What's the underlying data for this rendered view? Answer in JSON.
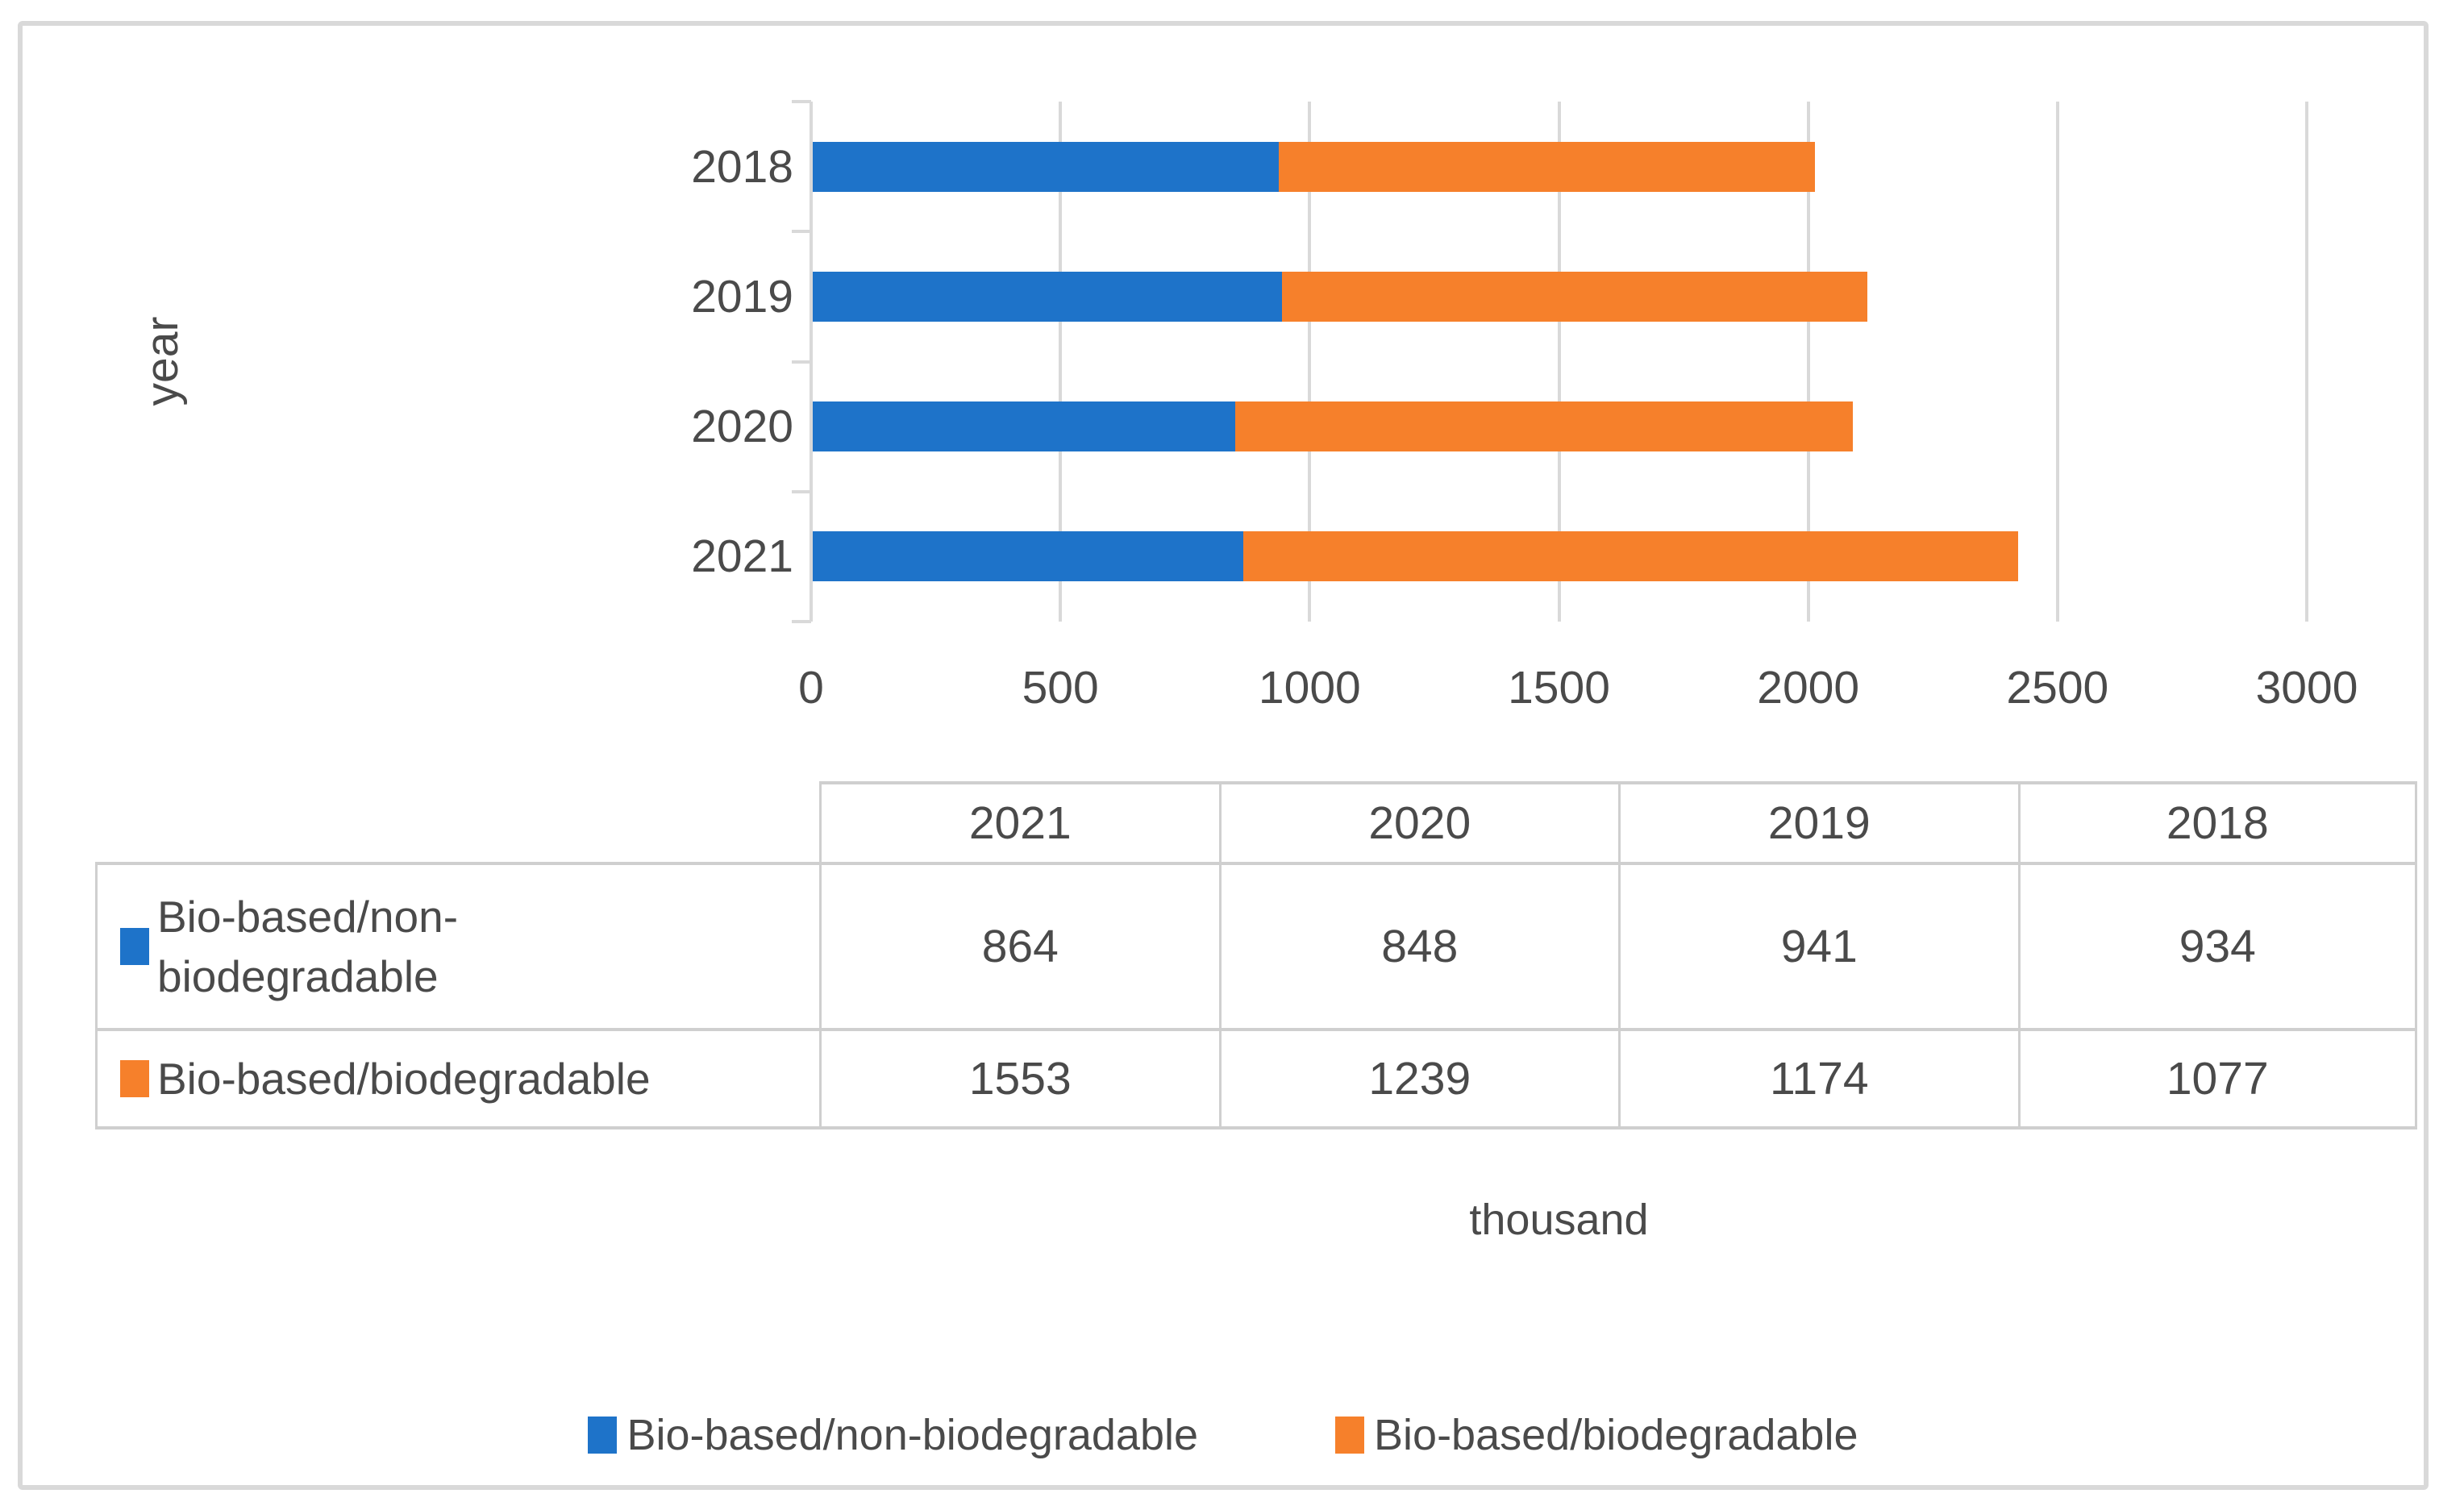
{
  "figure": {
    "background": "#ffffff",
    "border_color": "#d9d9d9",
    "grid_color": "#d9d9d9",
    "text_color": "#4a4a4a"
  },
  "chart_data": {
    "type": "bar",
    "orientation": "horizontal",
    "stacked": true,
    "title": "",
    "xlabel": "thousand",
    "ylabel": "year",
    "categories": [
      "2018",
      "2019",
      "2020",
      "2021"
    ],
    "series": [
      {
        "name": "Bio-based/non-biodegradable",
        "color": "#1E73C9",
        "values": [
          934,
          941,
          848,
          864
        ]
      },
      {
        "name": "Bio-based/biodegradable",
        "color": "#F6802B",
        "values": [
          1077,
          1174,
          1239,
          1553
        ]
      }
    ],
    "xlim": [
      0,
      3000
    ],
    "x_ticks": [
      "0",
      "500",
      "1000",
      "1500",
      "2000",
      "2500",
      "3000"
    ],
    "grid": "vertical",
    "legend_position": "bottom"
  },
  "data_table": {
    "columns": [
      "2021",
      "2020",
      "2019",
      "2018"
    ],
    "rows": [
      {
        "label": "Bio-based/non-biodegradable",
        "swatch_color": "#1E73C9",
        "values": [
          "864",
          "848",
          "941",
          "934"
        ]
      },
      {
        "label": "Bio-based/biodegradable",
        "swatch_color": "#F6802B",
        "values": [
          "1553",
          "1239",
          "1174",
          "1077"
        ]
      }
    ]
  },
  "legend": {
    "items": [
      {
        "label": "Bio-based/non-biodegradable",
        "color": "#1E73C9"
      },
      {
        "label": "Bio-based/biodegradable",
        "color": "#F6802B"
      }
    ]
  }
}
